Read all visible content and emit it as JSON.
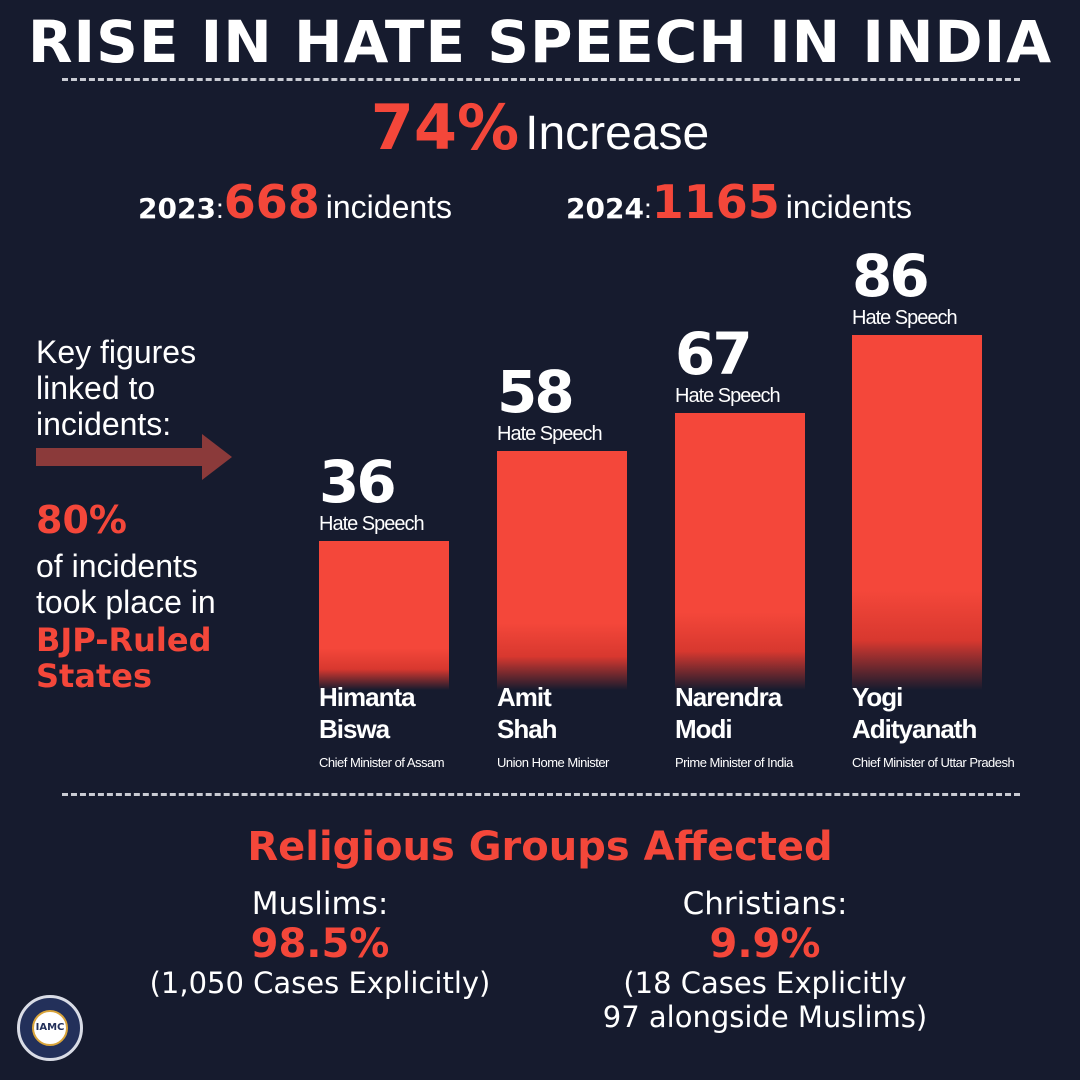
{
  "header": {
    "title": "RISE IN HATE SPEECH IN INDIA",
    "increase_pct": "74%",
    "increase_label": "Increase",
    "years": [
      {
        "year": "2023",
        "colon": ":",
        "count": "668",
        "unit": "incidents"
      },
      {
        "year": "2024",
        "colon": ":",
        "count": "1165",
        "unit": "incidents"
      }
    ]
  },
  "left_panel": {
    "key_figures_lines": [
      "Key figures",
      "linked to",
      "incidents:"
    ],
    "pct": "80%",
    "desc_lines": [
      "of incidents",
      "took place in"
    ],
    "bjp_lines": [
      "BJP-Ruled",
      "States"
    ]
  },
  "chart_data": {
    "type": "bar",
    "categories": [
      "Himanta Biswa",
      "Amit Shah",
      "Narendra Modi",
      "Yogi Adityanath"
    ],
    "values": [
      36,
      58,
      67,
      86
    ],
    "value_unit_label": "Hate Speech",
    "first_names": [
      "Himanta",
      "Amit",
      "Narendra",
      "Yogi"
    ],
    "last_names": [
      "Biswa",
      "Shah",
      "Modi",
      "Adityanath"
    ],
    "roles": [
      "Chief Minister of Assam",
      "Union Home Minister",
      "Prime Minister of India",
      "Chief Minister of Uttar Pradesh"
    ],
    "bar_color": "#f4473a"
  },
  "religious": {
    "title": "Religious Groups Affected",
    "groups": [
      {
        "name": "Muslims:",
        "pct": "98.5%",
        "note_lines": [
          "(1,050 Cases Explicitly)"
        ]
      },
      {
        "name": "Christians:",
        "pct": "9.9%",
        "note_lines": [
          "(18 Cases Explicitly",
          "97 alongside Muslims)"
        ]
      }
    ]
  },
  "logo": {
    "text": "IAMC"
  },
  "colors": {
    "background": "#161b2e",
    "accent": "#f4473a",
    "arrow": "#8b3a3a"
  }
}
